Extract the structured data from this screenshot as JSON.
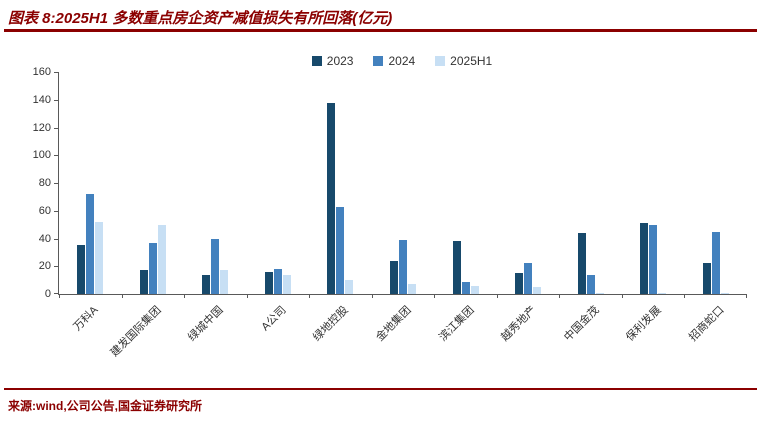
{
  "header": {
    "title": "图表 8:2025H1 多数重点房企资产减值损失有所回落(亿元)"
  },
  "footer": {
    "source": "来源:wind,公司公告,国金证券研究所"
  },
  "colors": {
    "accent_red": "#8B0000",
    "axis": "#595959",
    "text": "#333333"
  },
  "chart_data": {
    "type": "bar",
    "title": "2025H1 多数重点房企资产减值损失有所回落(亿元)",
    "categories": [
      "万科A",
      "建发国际集团",
      "绿城中国",
      "A公司",
      "绿地控股",
      "金地集团",
      "滨江集团",
      "越秀地产",
      "中国金茂",
      "保利发展",
      "招商蛇口"
    ],
    "series": [
      {
        "name": "2023",
        "color": "#17496B",
        "values": [
          35,
          17,
          14,
          16,
          138,
          24,
          38,
          15,
          44,
          51,
          22
        ]
      },
      {
        "name": "2024",
        "color": "#4381BE",
        "values": [
          72,
          37,
          40,
          18,
          63,
          39,
          9,
          22,
          14,
          50,
          45
        ]
      },
      {
        "name": "2025H1",
        "color": "#C7DFF4",
        "values": [
          52,
          50,
          17,
          14,
          10,
          7,
          6,
          5,
          1,
          1,
          1
        ]
      }
    ],
    "xlabel": "",
    "ylabel": "",
    "ylim": [
      0,
      160
    ],
    "ytick_step": 20,
    "legend_position": "top",
    "grid": false
  }
}
